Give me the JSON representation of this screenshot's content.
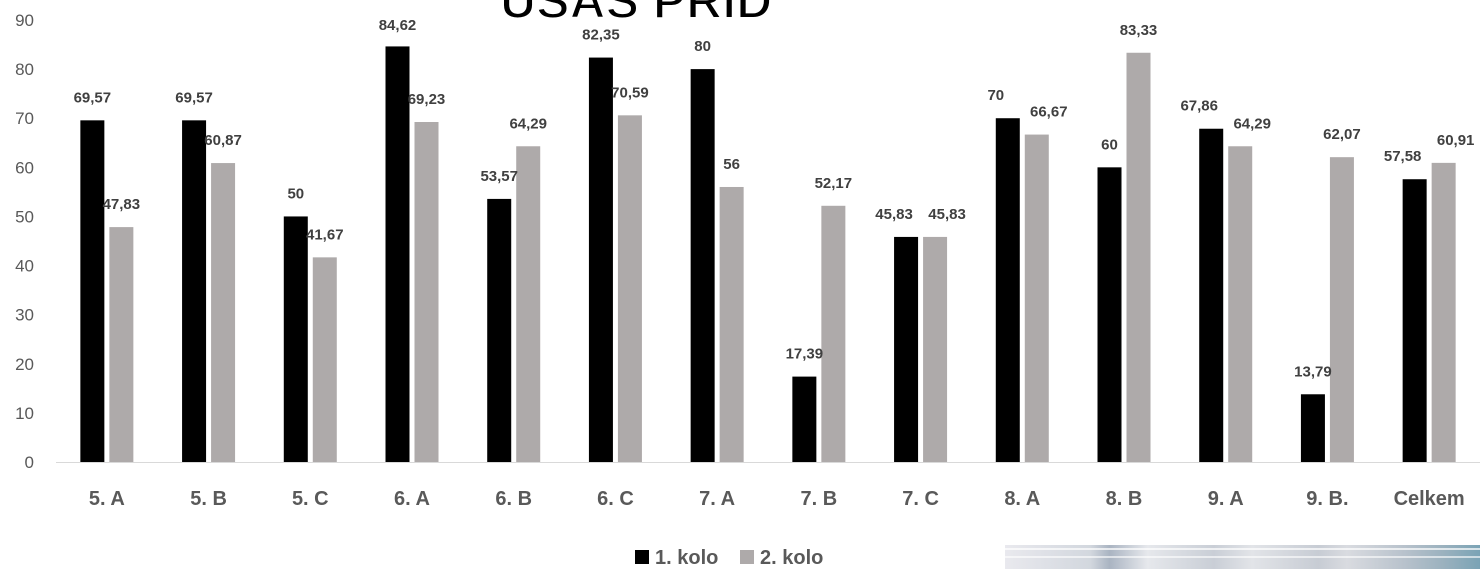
{
  "chart_data": {
    "type": "bar",
    "title": "ÚSAŠ PRID",
    "categories": [
      "5. A",
      "5. B",
      "5. C",
      "6. A",
      "6. B",
      "6. C",
      "7. A",
      "7. B",
      "7. C",
      "8. A",
      "8. B",
      "9. A",
      "9. B.",
      "Celkem"
    ],
    "series": [
      {
        "name": "1. kolo",
        "color": "#000000",
        "values": [
          69.57,
          69.57,
          50,
          84.62,
          53.57,
          82.35,
          80,
          17.39,
          45.83,
          70,
          60,
          67.86,
          13.79,
          57.58
        ],
        "labels": [
          "69,57",
          "69,57",
          "50",
          "84,62",
          "53,57",
          "82,35",
          "80",
          "17,39",
          "45,83",
          "70",
          "60",
          "67,86",
          "13,79",
          "57,58"
        ]
      },
      {
        "name": "2. kolo",
        "color": "#aeaaaa",
        "values": [
          47.83,
          60.87,
          41.67,
          69.23,
          64.29,
          70.59,
          56,
          52.17,
          45.83,
          66.67,
          83.33,
          64.29,
          62.07,
          60.91
        ],
        "labels": [
          "47,83",
          "60,87",
          "41,67",
          "69,23",
          "64,29",
          "70,59",
          "56",
          "52,17",
          "45,83",
          "66,67",
          "83,33",
          "64,29",
          "62,07",
          "60,91"
        ]
      }
    ],
    "ylim": [
      0,
      90
    ],
    "yticks": [
      0,
      10,
      20,
      30,
      40,
      50,
      60,
      70,
      80,
      90
    ],
    "xlabel": "",
    "ylabel": "",
    "grid": false,
    "legend": "bottom-center"
  }
}
